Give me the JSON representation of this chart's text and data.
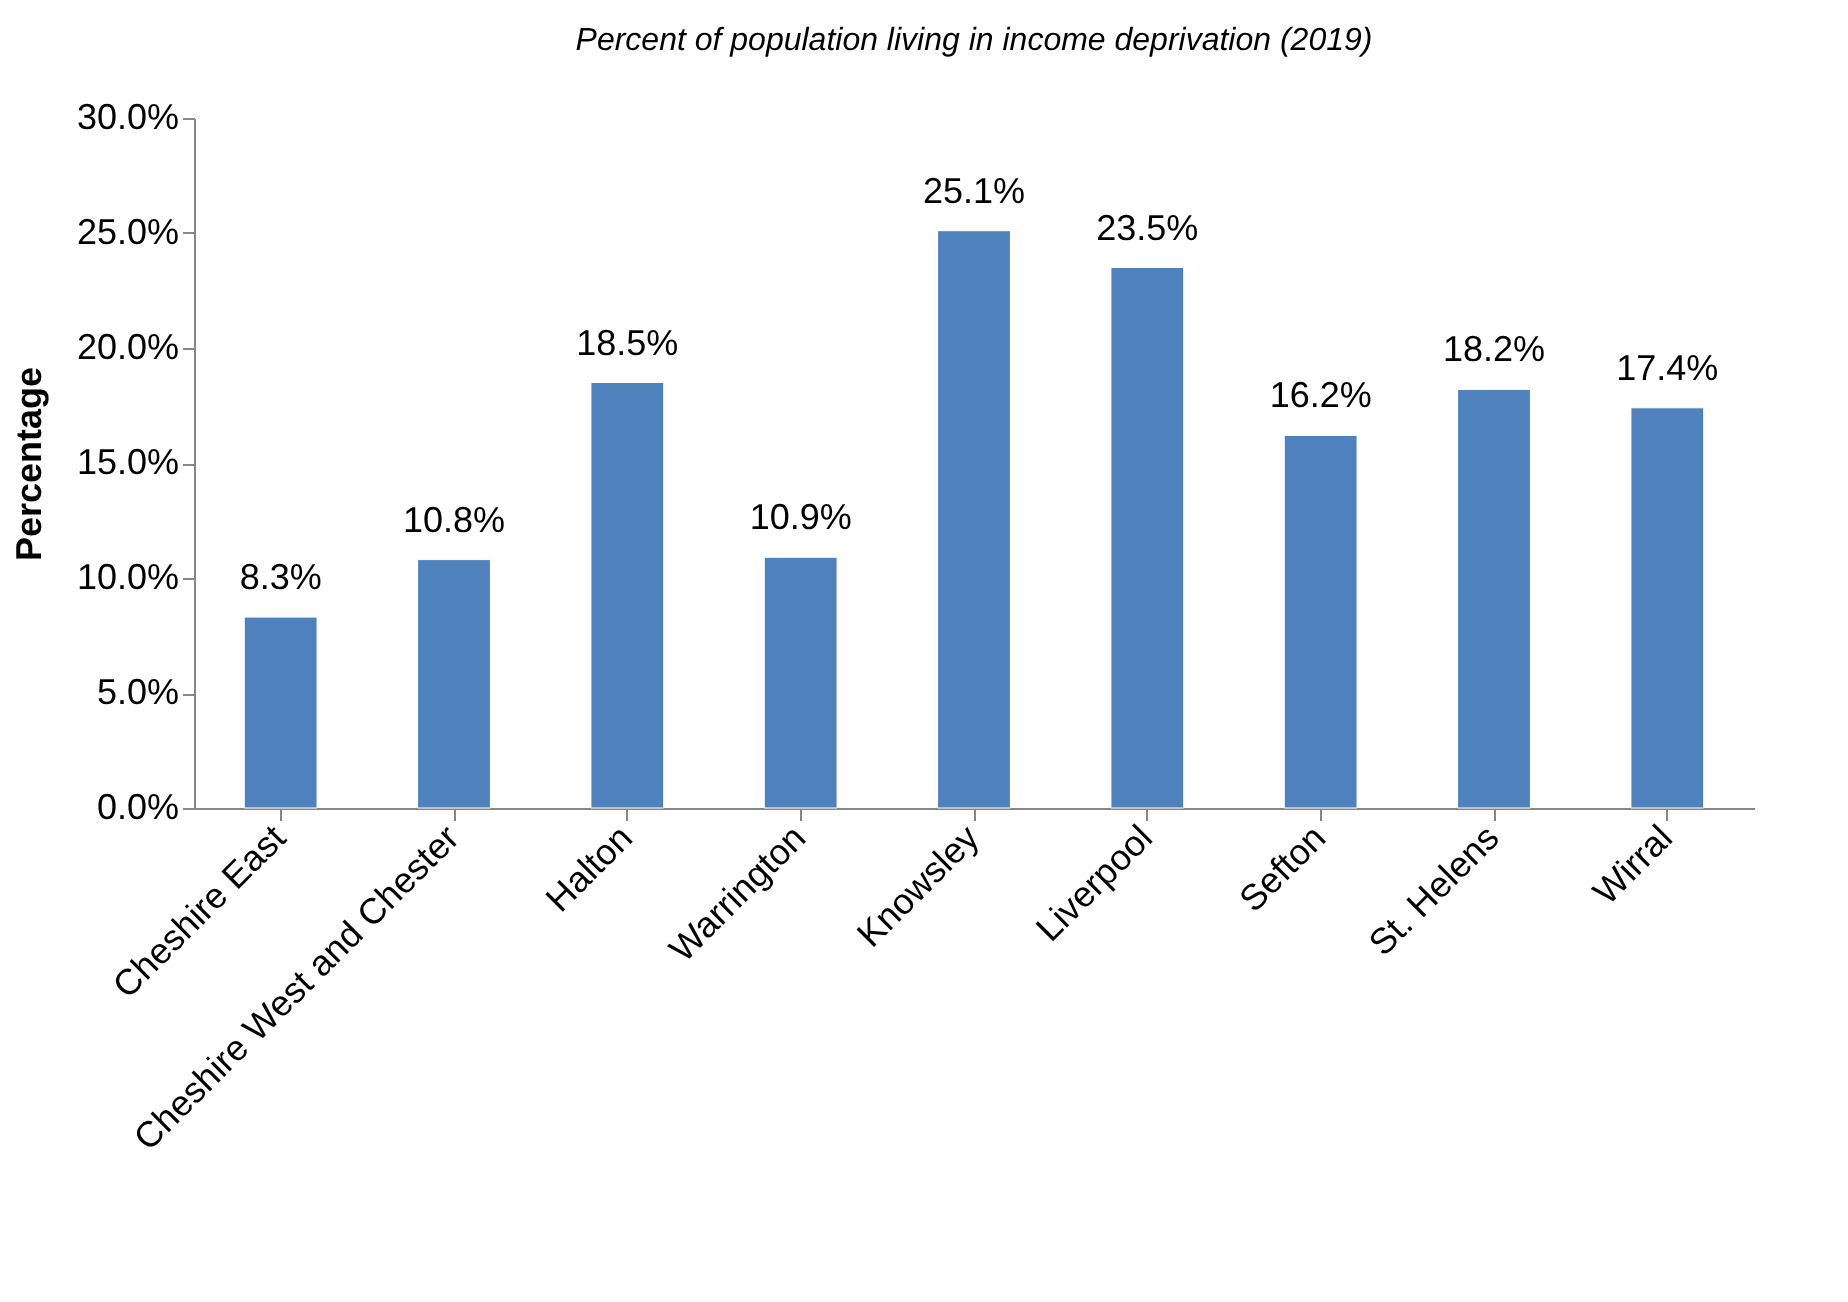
{
  "chart_data": {
    "type": "bar",
    "title": "Percent of population living in income deprivation (2019)",
    "ylabel": "Percentage",
    "categories": [
      "Cheshire East",
      "Cheshire West and Chester",
      "Halton",
      "Warrington",
      "Knowsley",
      "Liverpool",
      "Sefton",
      "St. Helens",
      "Wirral"
    ],
    "values": [
      8.3,
      10.8,
      18.5,
      10.9,
      25.1,
      23.5,
      16.2,
      18.2,
      17.4
    ],
    "value_labels": [
      "8.3%",
      "10.8%",
      "18.5%",
      "10.9%",
      "25.1%",
      "23.5%",
      "16.2%",
      "18.2%",
      "17.4%"
    ],
    "color": "#4f81bd",
    "ylim": [
      0,
      30
    ],
    "yticks": [
      {
        "value": 0,
        "label": "0.0%"
      },
      {
        "value": 5,
        "label": "5.0%"
      },
      {
        "value": 10,
        "label": "10.0%"
      },
      {
        "value": 15,
        "label": "15.0%"
      },
      {
        "value": 20,
        "label": "20.0%"
      },
      {
        "value": 25,
        "label": "25.0%"
      },
      {
        "value": 30,
        "label": "30.0%"
      }
    ],
    "grid": false
  }
}
